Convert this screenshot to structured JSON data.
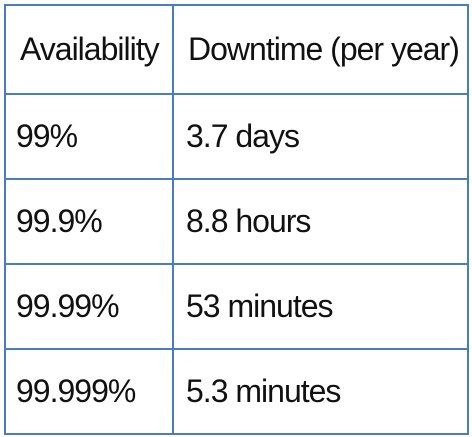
{
  "table": {
    "headers": [
      "Availability",
      "Downtime (per year)"
    ],
    "rows": [
      [
        "99%",
        "3.7 days"
      ],
      [
        "99.9%",
        "8.8 hours"
      ],
      [
        "99.99%",
        "53 minutes"
      ],
      [
        "99.999%",
        "5.3 minutes"
      ]
    ],
    "border_color": "#4a7ebb",
    "text_color": "#111111"
  }
}
